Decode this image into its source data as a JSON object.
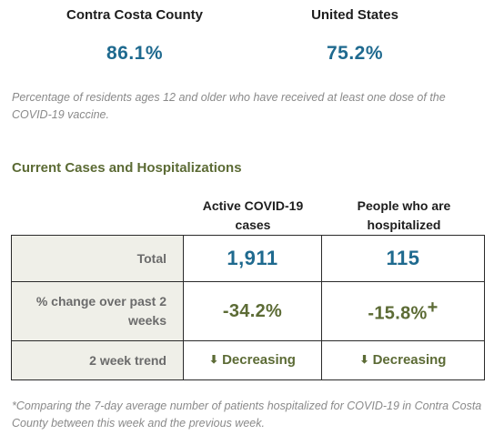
{
  "vaccination": {
    "county_label": "Contra Costa County",
    "county_value": "86.1%",
    "us_label": "United States",
    "us_value": "75.2%",
    "note": "Percentage of residents ages 12 and older who have received at least one dose of the COVID-19 vaccine."
  },
  "section_title": "Current Cases and Hospitalizations",
  "table": {
    "headers": [
      "Active COVID-19 cases",
      "People who are hospitalized"
    ],
    "rows": [
      {
        "label": "Total",
        "active": "1,911",
        "hospitalized": "115"
      },
      {
        "label": "% change over past 2 weeks",
        "active": "-34.2%",
        "hospitalized": "-15.8%",
        "hospitalized_mark": "+"
      },
      {
        "label": "2 week trend",
        "active": "Decreasing",
        "hospitalized": "Decreasing",
        "trend_icon": "arrow-down-icon"
      }
    ]
  },
  "footnote": "*Comparing the 7-day average number of patients hospitalized for COVID-19 in Contra Costa County between this week and the previous week.",
  "colors": {
    "value_blue": "#1f6a8f",
    "value_green": "#5c6b35",
    "label_bg": "#efefe8"
  }
}
